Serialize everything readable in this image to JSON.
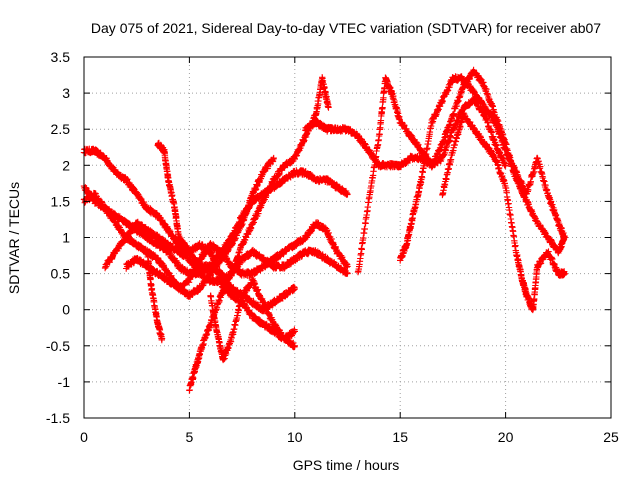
{
  "chart_data": {
    "type": "scatter",
    "title": "Day 075 of 2021, Sidereal Day-to-day VTEC variation (SDTVAR) for receiver ab07",
    "xlabel": "GPS time / hours",
    "ylabel": "SDTVAR / TECUs",
    "xlim": [
      0,
      25
    ],
    "ylim": [
      -1.5,
      3.5
    ],
    "xticks": [
      0,
      5,
      10,
      15,
      20,
      25
    ],
    "yticks": [
      -1.5,
      -1,
      -0.5,
      0,
      0.5,
      1,
      1.5,
      2,
      2.5,
      3,
      3.5
    ],
    "xtick_labels": [
      "0",
      "5",
      "10",
      "15",
      "20",
      "25"
    ],
    "ytick_labels": [
      "-1.5",
      "-1",
      "-0.5",
      "0",
      "0.5",
      "1",
      "1.5",
      "2",
      "2.5",
      "3",
      "3.5"
    ],
    "grid": true,
    "marker": "+",
    "color": "#ff0000",
    "series": [
      {
        "name": "s1",
        "x": [
          0.0,
          0.5,
          1.0,
          1.5,
          2.0,
          2.5,
          3.0,
          3.5,
          4.0,
          4.5,
          5.0,
          5.5,
          6.0,
          6.5,
          7.0,
          7.5,
          8.0,
          8.5,
          9.0,
          9.5,
          10.0
        ],
        "y": [
          2.2,
          2.2,
          2.1,
          1.9,
          1.8,
          1.6,
          1.4,
          1.3,
          1.1,
          0.9,
          0.8,
          0.6,
          0.6,
          0.5,
          0.3,
          0.2,
          0.1,
          0.0,
          0.1,
          0.2,
          0.3
        ]
      },
      {
        "name": "s2",
        "x": [
          0.0,
          0.5,
          1.0,
          1.5,
          2.0,
          2.5,
          3.0,
          3.5,
          4.0,
          4.5,
          5.0,
          5.5,
          6.0,
          6.5,
          7.0,
          7.5,
          8.0,
          8.5,
          9.0
        ],
        "y": [
          1.7,
          1.5,
          1.4,
          1.2,
          1.0,
          0.9,
          0.8,
          0.7,
          0.5,
          0.3,
          0.2,
          0.3,
          0.5,
          0.7,
          0.9,
          1.2,
          1.6,
          1.9,
          2.1
        ]
      },
      {
        "name": "s3",
        "x": [
          0.0,
          0.5,
          1.0,
          1.5,
          2.0,
          2.5,
          3.0,
          3.5,
          4.0,
          4.5,
          5.0,
          5.5,
          6.0,
          6.5,
          7.0,
          7.5,
          8.0,
          8.5,
          9.0,
          9.5,
          10.0,
          10.5,
          11.0,
          11.5,
          12.0,
          12.5
        ],
        "y": [
          1.5,
          1.6,
          1.4,
          1.3,
          1.2,
          1.1,
          1.0,
          0.9,
          0.8,
          0.6,
          0.5,
          0.5,
          0.6,
          0.8,
          1.0,
          1.3,
          1.5,
          1.6,
          1.7,
          1.8,
          1.9,
          1.9,
          1.8,
          1.8,
          1.7,
          1.6
        ]
      },
      {
        "name": "s4",
        "x": [
          1.0,
          1.5,
          2.0,
          2.5,
          3.0,
          3.5,
          4.0,
          4.5,
          5.0,
          5.5,
          6.0,
          6.5,
          7.0,
          7.5,
          8.0,
          8.5,
          9.0,
          9.5,
          10.0,
          10.5,
          11.0,
          11.5,
          12.0,
          12.5
        ],
        "y": [
          0.6,
          0.8,
          1.0,
          1.2,
          1.1,
          1.0,
          0.9,
          0.8,
          0.7,
          0.5,
          0.4,
          0.4,
          0.5,
          0.7,
          0.8,
          0.7,
          0.6,
          0.6,
          0.7,
          0.8,
          0.8,
          0.7,
          0.6,
          0.5
        ]
      },
      {
        "name": "s5",
        "x": [
          2.0,
          2.5,
          3.0,
          3.5,
          4.0,
          4.5,
          5.0,
          5.5,
          6.0,
          6.5,
          7.0,
          7.5,
          8.0,
          8.5,
          9.0,
          9.5,
          10.0,
          10.5,
          11.0,
          11.5,
          12.0,
          12.5
        ],
        "y": [
          0.6,
          0.7,
          0.6,
          0.5,
          0.4,
          0.3,
          0.4,
          0.7,
          0.9,
          0.8,
          0.6,
          0.5,
          0.5,
          0.6,
          0.7,
          0.8,
          0.9,
          1.0,
          1.2,
          1.1,
          0.8,
          0.6
        ]
      },
      {
        "name": "s6",
        "x": [
          3.5,
          3.8,
          4.0,
          4.3,
          4.5,
          5.0,
          5.5,
          6.0,
          6.3,
          6.6,
          7.0,
          7.5,
          8.0,
          8.5,
          9.0,
          9.5,
          10.0
        ],
        "y": [
          2.3,
          2.2,
          1.8,
          1.4,
          1.0,
          0.8,
          0.9,
          0.8,
          0.6,
          0.3,
          0.2,
          0.1,
          -0.1,
          -0.2,
          -0.3,
          -0.4,
          -0.3
        ]
      },
      {
        "name": "s7",
        "x": [
          3.0,
          3.2,
          3.5,
          3.7
        ],
        "y": [
          0.8,
          0.3,
          -0.2,
          -0.4
        ]
      },
      {
        "name": "s8",
        "x": [
          5.0,
          5.3,
          5.6,
          6.0,
          6.5,
          7.0,
          7.5,
          8.0,
          8.5,
          9.0,
          9.5,
          10.0,
          10.5,
          11.0,
          11.3,
          11.6
        ],
        "y": [
          -1.1,
          -0.8,
          -0.5,
          -0.2,
          0.2,
          0.5,
          0.9,
          1.2,
          1.5,
          1.8,
          2.0,
          2.1,
          2.4,
          2.7,
          3.2,
          2.8
        ]
      },
      {
        "name": "s9",
        "x": [
          6.0,
          6.3,
          6.6,
          7.0,
          7.5,
          8.0,
          8.5,
          9.0,
          9.5,
          10.0
        ],
        "y": [
          0.2,
          -0.3,
          -0.7,
          -0.4,
          0.2,
          0.4,
          0.1,
          -0.2,
          -0.4,
          -0.5
        ]
      },
      {
        "name": "s10",
        "x": [
          10.5,
          11.0,
          11.5,
          12.0,
          12.5,
          13.0,
          13.5,
          14.0,
          14.5,
          15.0,
          15.5,
          16.0,
          16.5,
          17.0,
          17.5,
          18.0,
          18.5,
          19.0,
          19.5,
          20.0
        ],
        "y": [
          2.5,
          2.6,
          2.5,
          2.5,
          2.5,
          2.4,
          2.2,
          2.0,
          2.0,
          2.0,
          2.1,
          2.1,
          2.0,
          2.1,
          2.5,
          2.8,
          2.9,
          2.7,
          2.3,
          2.0
        ]
      },
      {
        "name": "s11",
        "x": [
          13.0,
          13.5,
          14.0,
          14.3,
          14.6,
          15.0,
          15.5,
          16.0,
          16.5,
          17.0,
          17.5,
          18.0,
          18.5,
          19.0,
          19.5,
          20.0,
          20.5,
          21.0,
          21.5,
          22.0,
          22.5,
          22.8
        ],
        "y": [
          0.5,
          1.5,
          2.4,
          3.2,
          3.0,
          2.6,
          2.4,
          2.2,
          2.0,
          2.3,
          2.7,
          3.1,
          3.3,
          3.1,
          2.7,
          2.3,
          1.8,
          1.5,
          1.2,
          1.0,
          0.8,
          1.0
        ]
      },
      {
        "name": "s12",
        "x": [
          15.0,
          15.3,
          15.6,
          16.0,
          16.5,
          17.0,
          17.5,
          18.0,
          18.5,
          19.0,
          19.5,
          20.0,
          20.5,
          21.0,
          21.5,
          22.0,
          22.5,
          22.8
        ],
        "y": [
          0.7,
          0.9,
          1.3,
          1.8,
          2.6,
          2.9,
          3.2,
          3.2,
          3.0,
          2.8,
          2.6,
          2.2,
          1.9,
          1.6,
          2.1,
          1.6,
          1.2,
          1.0
        ]
      },
      {
        "name": "s13",
        "x": [
          17.0,
          17.5,
          18.0,
          18.5,
          19.0,
          19.5,
          20.0,
          20.5,
          20.8,
          21.0,
          21.3,
          21.5,
          22.0,
          22.5,
          22.8
        ],
        "y": [
          1.6,
          2.2,
          2.7,
          2.5,
          2.3,
          2.1,
          1.7,
          0.8,
          0.4,
          0.2,
          0.0,
          0.6,
          0.8,
          0.5,
          0.5
        ]
      }
    ]
  }
}
